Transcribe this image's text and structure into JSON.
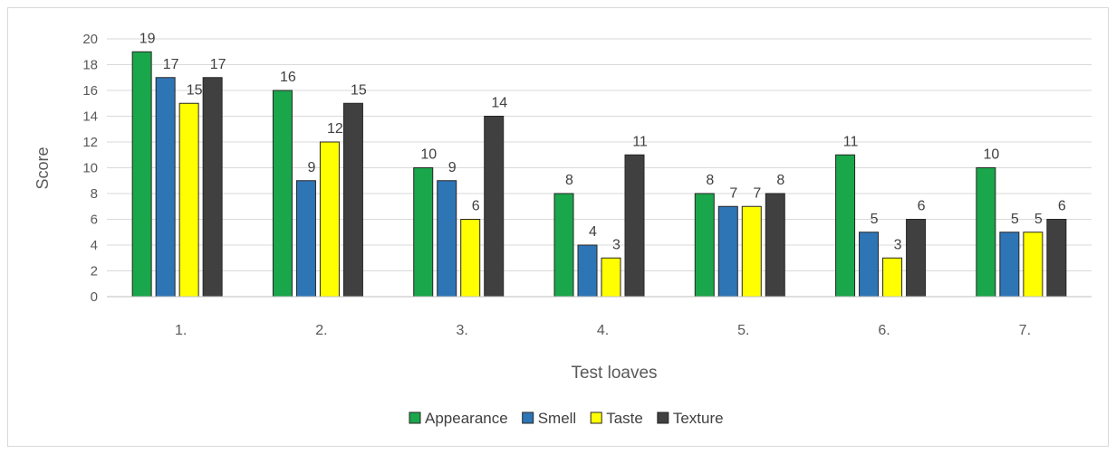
{
  "chart_data": {
    "type": "bar",
    "title": "",
    "xlabel": "Test loaves",
    "ylabel": "Score",
    "ylim": [
      0,
      20
    ],
    "yticks": [
      0,
      2,
      4,
      6,
      8,
      10,
      12,
      14,
      16,
      18,
      20
    ],
    "grid": true,
    "legend_position": "bottom",
    "categories": [
      "1.",
      "2.",
      "3.",
      "4.",
      "5.",
      "6.",
      "7."
    ],
    "series": [
      {
        "name": "Appearance",
        "color": "#1aa64a",
        "values": [
          19,
          16,
          10,
          8,
          8,
          11,
          10
        ]
      },
      {
        "name": "Smell",
        "color": "#2e75b6",
        "values": [
          17,
          9,
          9,
          4,
          7,
          5,
          5
        ]
      },
      {
        "name": "Taste",
        "color": "#ffff00",
        "values": [
          15,
          12,
          6,
          3,
          7,
          3,
          5
        ]
      },
      {
        "name": "Texture",
        "color": "#404040",
        "values": [
          17,
          15,
          14,
          11,
          8,
          6,
          6
        ]
      }
    ]
  }
}
